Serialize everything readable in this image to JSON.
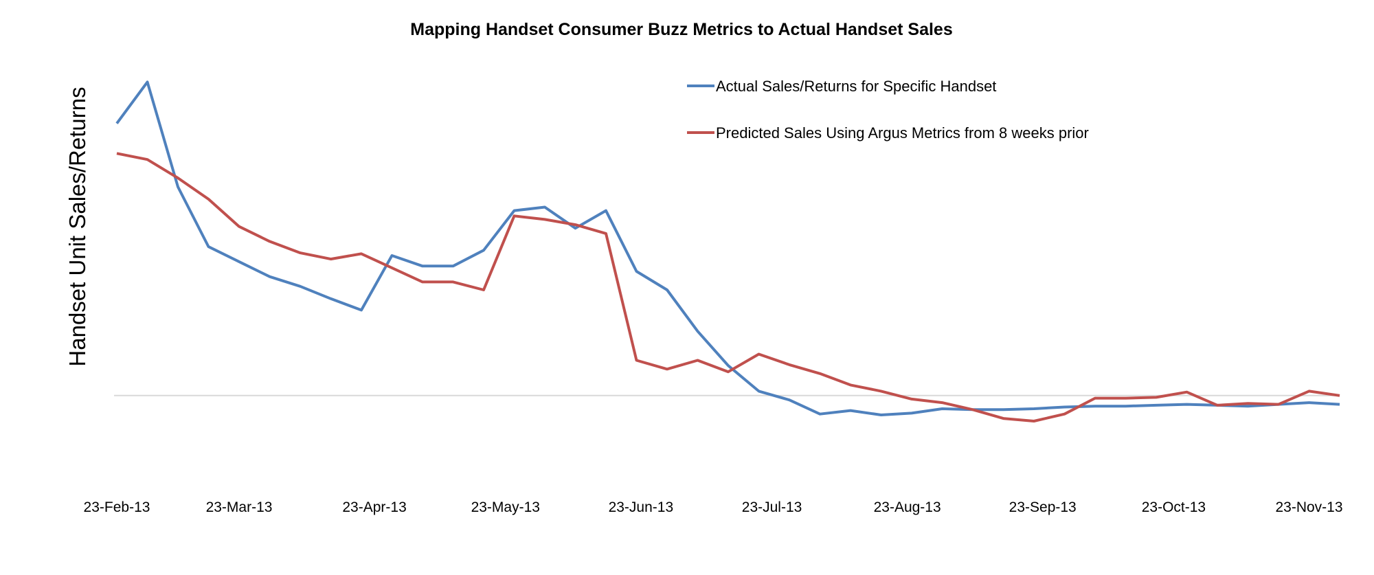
{
  "chart_data": {
    "type": "line",
    "title": "Mapping Handset Consumer Buzz Metrics to Actual Handset Sales",
    "xlabel": "",
    "ylabel": "Handset Unit Sales/Returns",
    "x_start_date": "2013-02-23",
    "x_interval_days": 7,
    "x_tick_labels": [
      "23-Feb-13",
      "23-Mar-13",
      "23-Apr-13",
      "23-May-13",
      "23-Jun-13",
      "23-Jul-13",
      "23-Aug-13",
      "23-Sep-13",
      "23-Oct-13",
      "23-Nov-13"
    ],
    "x_tick_day_offsets": [
      0,
      28,
      59,
      89,
      120,
      150,
      181,
      212,
      242,
      273
    ],
    "x_range_days": [
      0,
      280
    ],
    "ylim": [
      -100,
      400
    ],
    "y_units_note": "relative (no y tick labels shown)",
    "grid": false,
    "zero_line": true,
    "legend_position": "top-right",
    "series": [
      {
        "name": "Actual Sales/Returns for Specific Handset",
        "color": "#4F81BD",
        "values": [
          309,
          356,
          237,
          169,
          152,
          135,
          124,
          110,
          97,
          159,
          147,
          147,
          165,
          210,
          214,
          190,
          210,
          141,
          120,
          73,
          34,
          5,
          -5,
          -21,
          -17,
          -22,
          -20,
          -15,
          -16,
          -16,
          -15,
          -13,
          -12,
          -12,
          -11,
          -10,
          -11,
          -12,
          -10,
          -8,
          -10
        ]
      },
      {
        "name": "Predicted Sales Using Argus Metrics from 8 weeks prior",
        "color": "#C0504D",
        "values": [
          275,
          268,
          247,
          223,
          192,
          175,
          162,
          155,
          161,
          145,
          129,
          129,
          120,
          204,
          200,
          194,
          184,
          40,
          30,
          40,
          27,
          47,
          35,
          25,
          12,
          5,
          -4,
          -8,
          -16,
          -26,
          -29,
          -21,
          -3,
          -3,
          -2,
          4,
          -11,
          -9,
          -10,
          5,
          0
        ]
      }
    ]
  }
}
